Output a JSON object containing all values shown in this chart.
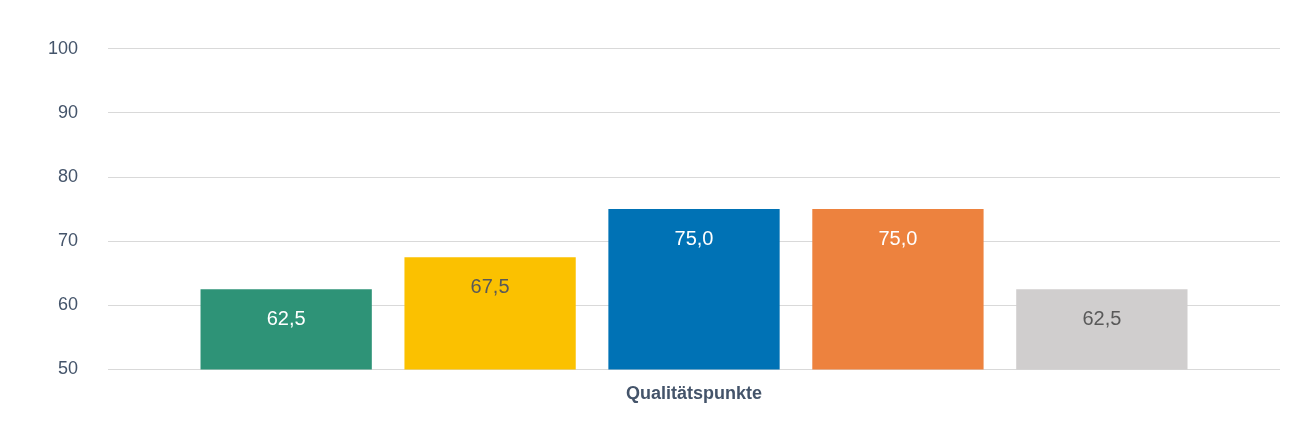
{
  "chart_data": {
    "type": "bar",
    "categories": [
      "Qualitätspunkte"
    ],
    "series": [
      {
        "color": "#2e9377",
        "values": [
          62.5
        ],
        "value_labels": [
          "62,5"
        ]
      },
      {
        "color": "#fbc100",
        "values": [
          67.5
        ],
        "value_labels": [
          "67,5"
        ]
      },
      {
        "color": "#0072b5",
        "values": [
          75.0
        ],
        "value_labels": [
          "75,0"
        ]
      },
      {
        "color": "#ed823e",
        "values": [
          75.0
        ],
        "value_labels": [
          "75,0"
        ]
      },
      {
        "color": "#d0cece",
        "values": [
          62.5
        ],
        "value_labels": [
          "62,5"
        ]
      }
    ],
    "ylim": [
      50,
      100
    ],
    "yticks": [
      50,
      60,
      70,
      80,
      90,
      100
    ],
    "grid": "y",
    "legend": false
  }
}
